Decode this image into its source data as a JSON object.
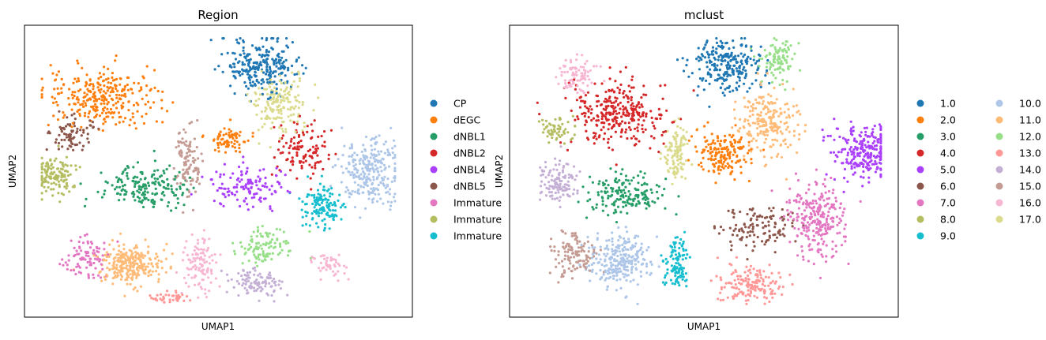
{
  "chart_data": [
    {
      "type": "scatter",
      "title": "Region",
      "xlabel": "UMAP1",
      "ylabel": "UMAP2",
      "grid": false,
      "legend_placement": "right",
      "legend": [
        {
          "label": "CP",
          "color": "#1f77b4"
        },
        {
          "label": "dEGC",
          "color": "#ff7f0e"
        },
        {
          "label": "dNBL1",
          "color": "#279e68"
        },
        {
          "label": "dNBL2",
          "color": "#d62728"
        },
        {
          "label": "dNBL4",
          "color": "#aa40fc"
        },
        {
          "label": "dNBL5",
          "color": "#8c564b"
        },
        {
          "label": "Immature",
          "color": "#e377c2"
        },
        {
          "label": "Immature",
          "color": "#b5bd61"
        },
        {
          "label": "Immature",
          "color": "#17becf"
        }
      ],
      "unlabeled_colors": [
        "#aec7e8",
        "#ffbb78",
        "#98df8a",
        "#ff9896",
        "#c5b0d5",
        "#c49c94",
        "#f7b6d2",
        "#dbdb8d"
      ],
      "clusters": [
        {
          "color": "#1f77b4",
          "center": [
            0.61,
            0.14
          ],
          "spread": [
            0.09,
            0.08
          ],
          "n": 260
        },
        {
          "color": "#ff7f0e",
          "center": [
            0.2,
            0.25
          ],
          "spread": [
            0.13,
            0.09
          ],
          "n": 300
        },
        {
          "color": "#ff7f0e",
          "center": [
            0.53,
            0.39
          ],
          "spread": [
            0.05,
            0.04
          ],
          "n": 70
        },
        {
          "color": "#279e68",
          "center": [
            0.32,
            0.56
          ],
          "spread": [
            0.1,
            0.07
          ],
          "n": 180
        },
        {
          "color": "#d62728",
          "center": [
            0.72,
            0.43
          ],
          "spread": [
            0.06,
            0.09
          ],
          "n": 110
        },
        {
          "color": "#aa40fc",
          "center": [
            0.58,
            0.55
          ],
          "spread": [
            0.1,
            0.06
          ],
          "n": 130
        },
        {
          "color": "#8c564b",
          "center": [
            0.12,
            0.37
          ],
          "spread": [
            0.05,
            0.06
          ],
          "n": 80
        },
        {
          "color": "#e377c2",
          "center": [
            0.16,
            0.8
          ],
          "spread": [
            0.06,
            0.07
          ],
          "n": 90
        },
        {
          "color": "#b5bd61",
          "center": [
            0.08,
            0.52
          ],
          "spread": [
            0.05,
            0.06
          ],
          "n": 130
        },
        {
          "color": "#17becf",
          "center": [
            0.77,
            0.62
          ],
          "spread": [
            0.05,
            0.07
          ],
          "n": 130
        },
        {
          "color": "#aec7e8",
          "center": [
            0.89,
            0.5
          ],
          "spread": [
            0.07,
            0.1
          ],
          "n": 260
        },
        {
          "color": "#ffbb78",
          "center": [
            0.27,
            0.82
          ],
          "spread": [
            0.07,
            0.06
          ],
          "n": 260
        },
        {
          "color": "#98df8a",
          "center": [
            0.62,
            0.76
          ],
          "spread": [
            0.07,
            0.05
          ],
          "n": 110
        },
        {
          "color": "#ff9896",
          "center": [
            0.37,
            0.93
          ],
          "spread": [
            0.04,
            0.02
          ],
          "n": 40
        },
        {
          "color": "#c5b0d5",
          "center": [
            0.6,
            0.88
          ],
          "spread": [
            0.06,
            0.05
          ],
          "n": 100
        },
        {
          "color": "#c49c94",
          "center": [
            0.42,
            0.47
          ],
          "spread": [
            0.03,
            0.1
          ],
          "n": 110
        },
        {
          "color": "#f7b6d2",
          "center": [
            0.45,
            0.82
          ],
          "spread": [
            0.04,
            0.09
          ],
          "n": 110
        },
        {
          "color": "#f7b6d2",
          "center": [
            0.79,
            0.82
          ],
          "spread": [
            0.04,
            0.04
          ],
          "n": 50
        },
        {
          "color": "#dbdb8d",
          "center": [
            0.66,
            0.27
          ],
          "spread": [
            0.06,
            0.1
          ],
          "n": 170
        }
      ]
    },
    {
      "type": "scatter",
      "title": "mclust",
      "xlabel": "UMAP1",
      "ylabel": "UMAP2",
      "grid": false,
      "legend_placement": "right",
      "legend": [
        {
          "label": "1.0",
          "color": "#1f77b4"
        },
        {
          "label": "2.0",
          "color": "#ff7f0e"
        },
        {
          "label": "3.0",
          "color": "#279e68"
        },
        {
          "label": "4.0",
          "color": "#d62728"
        },
        {
          "label": "5.0",
          "color": "#aa40fc"
        },
        {
          "label": "6.0",
          "color": "#8c564b"
        },
        {
          "label": "7.0",
          "color": "#e377c2"
        },
        {
          "label": "8.0",
          "color": "#b5bd61"
        },
        {
          "label": "9.0",
          "color": "#17becf"
        },
        {
          "label": "10.0",
          "color": "#aec7e8"
        },
        {
          "label": "11.0",
          "color": "#ffbb78"
        },
        {
          "label": "12.0",
          "color": "#98df8a"
        },
        {
          "label": "13.0",
          "color": "#ff9896"
        },
        {
          "label": "14.0",
          "color": "#c5b0d5"
        },
        {
          "label": "15.0",
          "color": "#c49c94"
        },
        {
          "label": "16.0",
          "color": "#f7b6d2"
        },
        {
          "label": "17.0",
          "color": "#dbdb8d"
        }
      ],
      "clusters": [
        {
          "color": "#1f77b4",
          "center": [
            0.56,
            0.14
          ],
          "spread": [
            0.08,
            0.08
          ],
          "n": 250
        },
        {
          "color": "#ff7f0e",
          "center": [
            0.55,
            0.44
          ],
          "spread": [
            0.06,
            0.07
          ],
          "n": 170
        },
        {
          "color": "#279e68",
          "center": [
            0.3,
            0.58
          ],
          "spread": [
            0.09,
            0.07
          ],
          "n": 170
        },
        {
          "color": "#d62728",
          "center": [
            0.28,
            0.3
          ],
          "spread": [
            0.11,
            0.1
          ],
          "n": 300
        },
        {
          "color": "#aa40fc",
          "center": [
            0.91,
            0.43
          ],
          "spread": [
            0.07,
            0.09
          ],
          "n": 240
        },
        {
          "color": "#8c564b",
          "center": [
            0.64,
            0.69
          ],
          "spread": [
            0.09,
            0.07
          ],
          "n": 120
        },
        {
          "color": "#e377c2",
          "center": [
            0.79,
            0.66
          ],
          "spread": [
            0.07,
            0.11
          ],
          "n": 260
        },
        {
          "color": "#b5bd61",
          "center": [
            0.12,
            0.36
          ],
          "spread": [
            0.04,
            0.04
          ],
          "n": 60
        },
        {
          "color": "#17becf",
          "center": [
            0.43,
            0.82
          ],
          "spread": [
            0.03,
            0.07
          ],
          "n": 110
        },
        {
          "color": "#aec7e8",
          "center": [
            0.28,
            0.81
          ],
          "spread": [
            0.07,
            0.08
          ],
          "n": 260
        },
        {
          "color": "#ffbb78",
          "center": [
            0.66,
            0.34
          ],
          "spread": [
            0.07,
            0.11
          ],
          "n": 220
        },
        {
          "color": "#98df8a",
          "center": [
            0.69,
            0.12
          ],
          "spread": [
            0.04,
            0.07
          ],
          "n": 100
        },
        {
          "color": "#ff9896",
          "center": [
            0.62,
            0.89
          ],
          "spread": [
            0.07,
            0.05
          ],
          "n": 160
        },
        {
          "color": "#c5b0d5",
          "center": [
            0.12,
            0.54
          ],
          "spread": [
            0.05,
            0.07
          ],
          "n": 120
        },
        {
          "color": "#c49c94",
          "center": [
            0.17,
            0.79
          ],
          "spread": [
            0.05,
            0.08
          ],
          "n": 120
        },
        {
          "color": "#f7b6d2",
          "center": [
            0.17,
            0.17
          ],
          "spread": [
            0.04,
            0.06
          ],
          "n": 90
        },
        {
          "color": "#dbdb8d",
          "center": [
            0.43,
            0.43
          ],
          "spread": [
            0.03,
            0.09
          ],
          "n": 110
        }
      ]
    }
  ]
}
